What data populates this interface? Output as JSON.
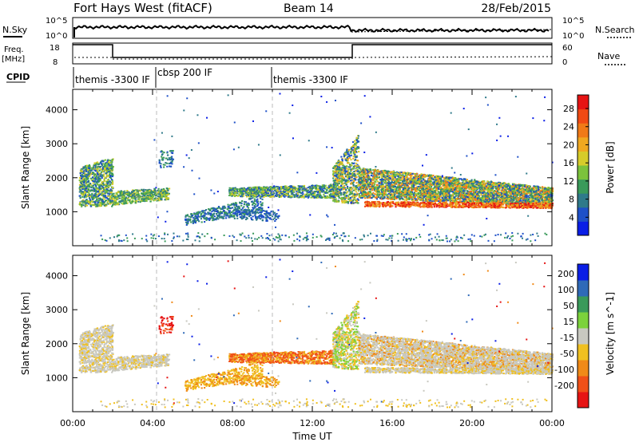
{
  "header": {
    "station": "Fort Hays West (fitACF)",
    "beam": "Beam 14",
    "date": "28/Feb/2015"
  },
  "summary_panels": {
    "nsky_label": "N.Sky",
    "nsearch_label": "N.Search",
    "log_top_label": "10^5",
    "log_bottom_label": "10^0",
    "freq_label": "Freq.",
    "freq_unit": "[MHz]",
    "freq_ticks": [
      "18",
      "8"
    ],
    "nave_label": "Nave",
    "nave_ticks": [
      "60",
      "0"
    ],
    "cpid_label": "CPID",
    "cpid_entries": [
      {
        "label": "themis -3300 IF",
        "start_hour": 0
      },
      {
        "label": "cbsp 200 IF",
        "start_hour": 4.2
      },
      {
        "label": "themis -3300 IF",
        "start_hour": 10
      }
    ]
  },
  "chart_data": [
    {
      "type": "heatmap",
      "name": "power",
      "ylabel": "Slant Range [km]",
      "ylim": [
        0,
        4600
      ],
      "yticks": [
        "1000",
        "2000",
        "3000",
        "4000"
      ],
      "xlim": [
        0,
        24
      ],
      "colorbar_label": "Power [dB]",
      "colorbar_ticks": [
        "4",
        "8",
        "12",
        "16",
        "20",
        "24",
        "28"
      ],
      "colorbar_range": [
        0,
        31
      ],
      "colors": [
        "#0a1ee6",
        "#1e50c8",
        "#2f7a8a",
        "#3a9a5a",
        "#7cc23c",
        "#d6cc2a",
        "#f0a820",
        "#f07a18",
        "#f04a14",
        "#e61414"
      ]
    },
    {
      "type": "heatmap",
      "name": "velocity",
      "ylabel": "Slant Range [km]",
      "ylim": [
        0,
        4600
      ],
      "yticks": [
        "1000",
        "2000",
        "3000",
        "4000"
      ],
      "xlim": [
        0,
        24
      ],
      "xlabel": "Time UT",
      "xticks": [
        "00:00",
        "04:00",
        "08:00",
        "12:00",
        "16:00",
        "20:00",
        "00:00"
      ],
      "colorbar_label": "Velocity [m s^-1]",
      "colorbar_ticks": [
        "200",
        "100",
        "50",
        "15",
        "-15",
        "-50",
        "-100",
        "-200"
      ],
      "colors": [
        "#0a1ee6",
        "#2f6ab8",
        "#3a9a5a",
        "#7cd23c",
        "#c8c8c0",
        "#f0c020",
        "#f08a18",
        "#f05018",
        "#e61414"
      ]
    }
  ]
}
